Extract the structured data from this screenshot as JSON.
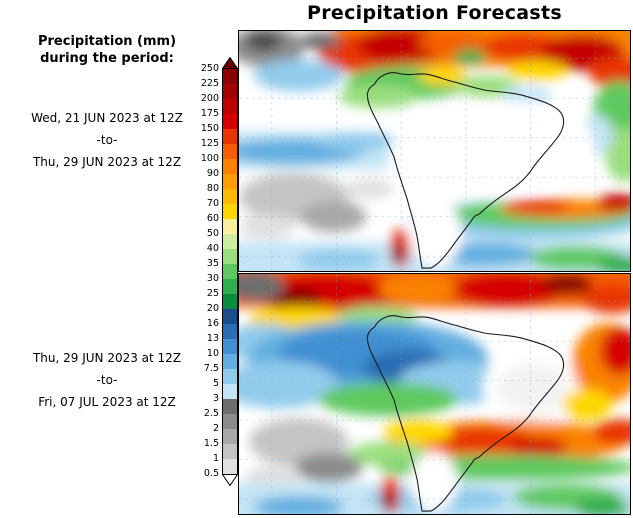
{
  "title": "Precipitation Forecasts",
  "legend": {
    "title_line1": "Precipitation (mm)",
    "title_line2": "during the period:",
    "unit": "mm",
    "scale_labels": [
      "250",
      "225",
      "200",
      "175",
      "150",
      "125",
      "100",
      "90",
      "80",
      "70",
      "60",
      "50",
      "40",
      "35",
      "30",
      "25",
      "20",
      "16",
      "13",
      "10",
      "7.5",
      "5",
      "3",
      "2.5",
      "2",
      "1.5",
      "1",
      "0.5"
    ],
    "scale_colors_top_to_bottom": {
      "above_max_arrow": "#6b0000",
      "cells": [
        "#8b0000",
        "#a30000",
        "#bd0000",
        "#d60000",
        "#e83500",
        "#f55f00",
        "#fa8200",
        "#fd9e00",
        "#feba00",
        "#fed700",
        "#f8ef9e",
        "#cdeea0",
        "#9ade7e",
        "#5ec95e",
        "#2fae4d",
        "#0c8c3f",
        "#1b4f8c",
        "#2a6db4",
        "#3f8fd2",
        "#62aee0",
        "#91cbec",
        "#c3e4f5",
        "#6e6e6e",
        "#8c8c8c",
        "#a8a8a8",
        "#c4c4c4",
        "#e0e0e0"
      ],
      "below_min_arrow": "#ffffff"
    }
  },
  "panels": [
    {
      "start": "Wed, 21 JUN 2023 at 12Z",
      "separator": "-to-",
      "end": "Thu, 29 JUN 2023 at 12Z"
    },
    {
      "start": "Thu, 29 JUN 2023 at 12Z",
      "separator": "-to-",
      "end": "Fri, 07 JUL 2023 at 12Z"
    }
  ]
}
